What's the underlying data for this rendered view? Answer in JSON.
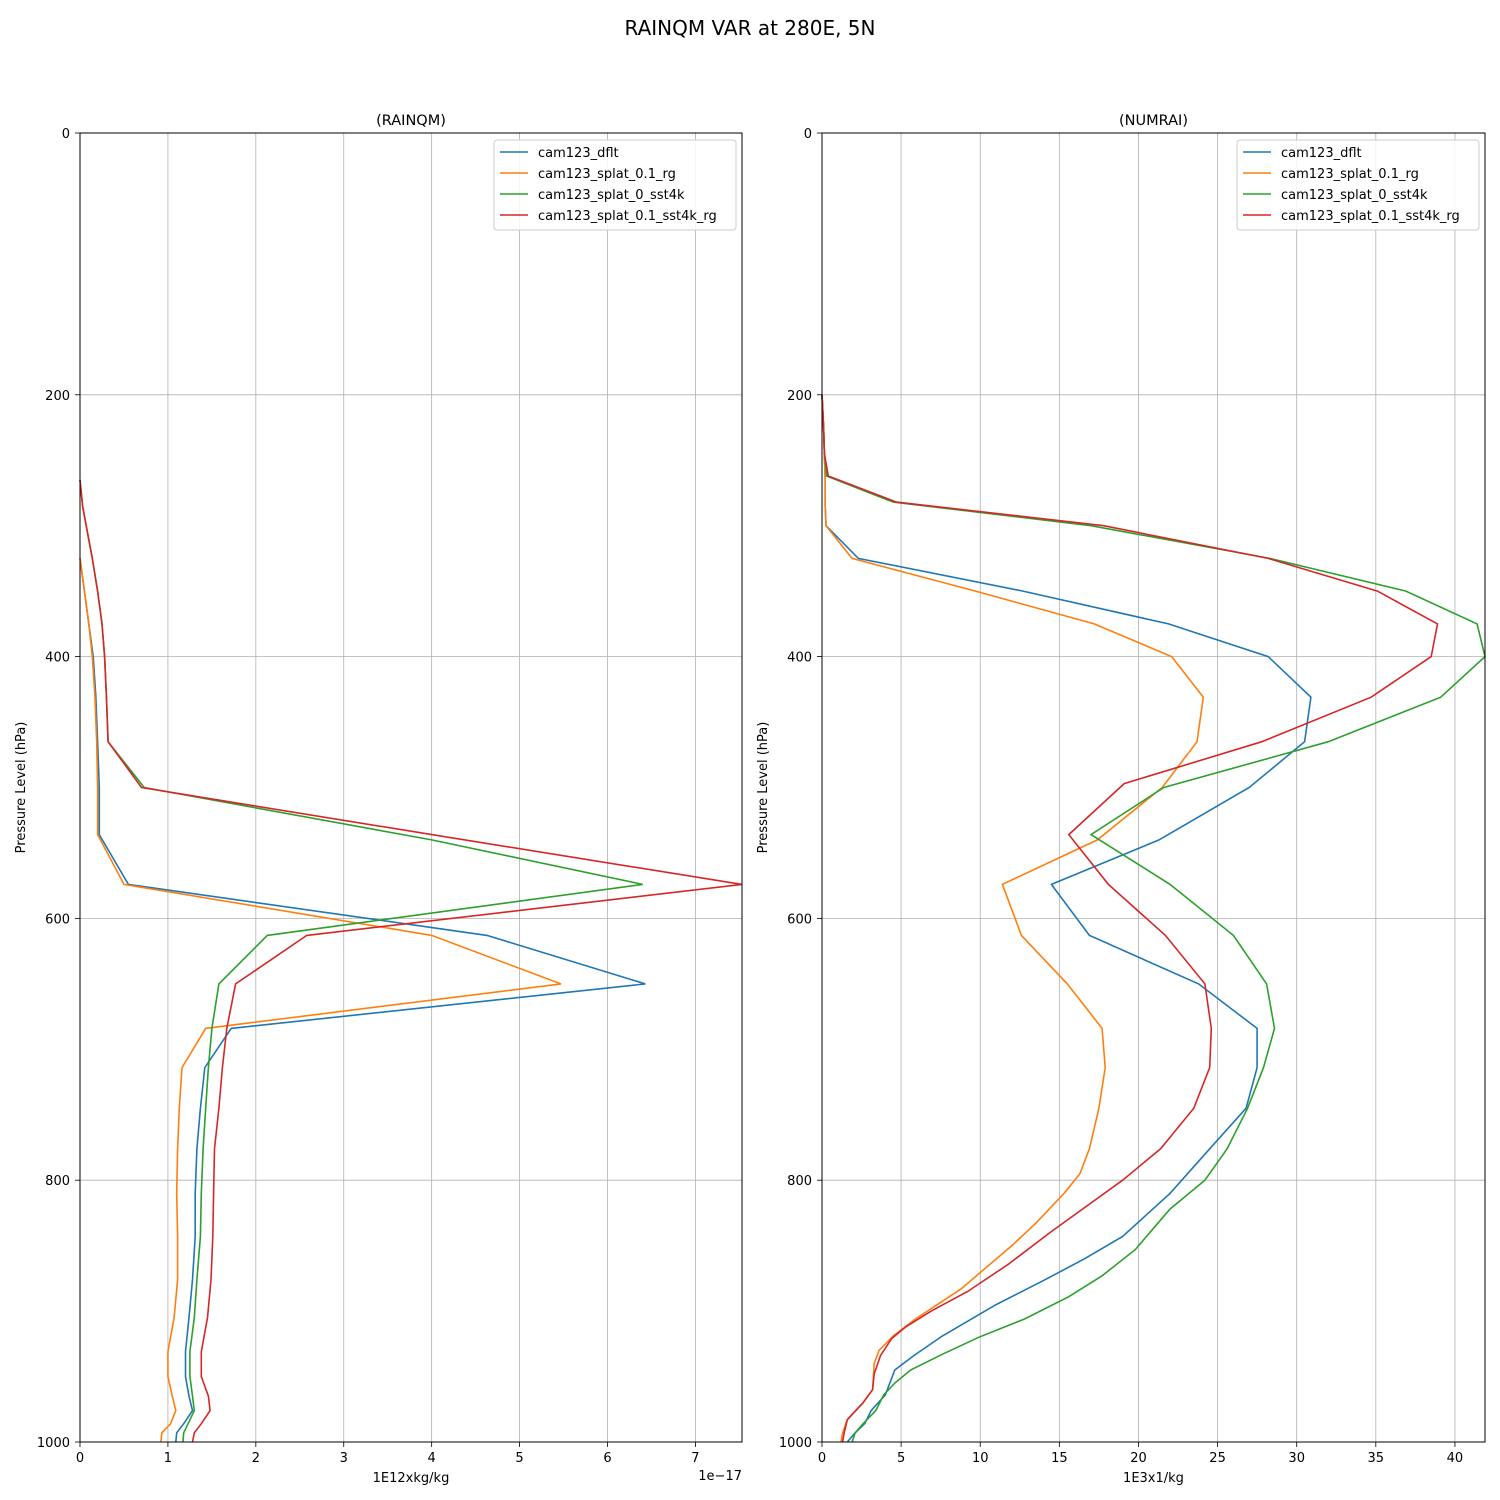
{
  "figure": {
    "title": "RAINQM VAR at 280E, 5N"
  },
  "chart_data": [
    {
      "type": "line",
      "title": "(RAINQM)",
      "xlabel": "1E12xkg/kg",
      "ylabel": "Pressure Level (hPa)",
      "x_offset_label": "1e−17",
      "xlim": [
        0,
        7.53
      ],
      "ylim": [
        1000,
        0
      ],
      "y_inverted": true,
      "grid": true,
      "legend_position": "upper right",
      "xticks": [
        0,
        1,
        2,
        3,
        4,
        5,
        6,
        7
      ],
      "yticks": [
        0,
        200,
        400,
        600,
        800,
        1000
      ],
      "series": [
        {
          "name": "cam123_dflt",
          "color": "#1f77b4",
          "points": [
            [
              0,
              325
            ],
            [
              0.05,
              350
            ],
            [
              0.1,
              375
            ],
            [
              0.15,
              400
            ],
            [
              0.18,
              430
            ],
            [
              0.2,
              465
            ],
            [
              0.22,
              500
            ],
            [
              0.22,
              536
            ],
            [
              0.55,
              574
            ],
            [
              4.63,
              613
            ],
            [
              6.43,
              650
            ],
            [
              1.72,
              684
            ],
            [
              1.42,
              714
            ],
            [
              1.37,
              745
            ],
            [
              1.33,
              776
            ],
            [
              1.31,
              810
            ],
            [
              1.31,
              843
            ],
            [
              1.28,
              876
            ],
            [
              1.24,
              905
            ],
            [
              1.2,
              931
            ],
            [
              1.2,
              950
            ],
            [
              1.24,
              965
            ],
            [
              1.28,
              976
            ],
            [
              1.18,
              986
            ],
            [
              1.1,
              993
            ],
            [
              1.09,
              1000
            ]
          ]
        },
        {
          "name": "cam123_splat_0.1_rg",
          "color": "#ff7f0e",
          "points": [
            [
              0,
              325
            ],
            [
              0.05,
              350
            ],
            [
              0.1,
              375
            ],
            [
              0.14,
              400
            ],
            [
              0.17,
              430
            ],
            [
              0.19,
              465
            ],
            [
              0.2,
              500
            ],
            [
              0.2,
              536
            ],
            [
              0.5,
              574
            ],
            [
              4.0,
              613
            ],
            [
              5.47,
              650
            ],
            [
              1.43,
              684
            ],
            [
              1.16,
              714
            ],
            [
              1.13,
              745
            ],
            [
              1.11,
              776
            ],
            [
              1.1,
              810
            ],
            [
              1.11,
              843
            ],
            [
              1.11,
              876
            ],
            [
              1.07,
              905
            ],
            [
              1.0,
              931
            ],
            [
              1.0,
              950
            ],
            [
              1.05,
              965
            ],
            [
              1.09,
              976
            ],
            [
              1.03,
              986
            ],
            [
              0.93,
              993
            ],
            [
              0.92,
              1000
            ]
          ]
        },
        {
          "name": "cam123_splat_0_sst4k",
          "color": "#2ca02c",
          "points": [
            [
              0,
              265
            ],
            [
              0.03,
              285
            ],
            [
              0.07,
              300
            ],
            [
              0.14,
              325
            ],
            [
              0.2,
              350
            ],
            [
              0.25,
              375
            ],
            [
              0.28,
              400
            ],
            [
              0.3,
              430
            ],
            [
              0.32,
              465
            ],
            [
              0.73,
              500
            ],
            [
              4.0,
              540
            ],
            [
              6.4,
              574
            ],
            [
              2.13,
              613
            ],
            [
              1.58,
              650
            ],
            [
              1.5,
              684
            ],
            [
              1.46,
              714
            ],
            [
              1.43,
              745
            ],
            [
              1.4,
              776
            ],
            [
              1.38,
              810
            ],
            [
              1.37,
              843
            ],
            [
              1.33,
              876
            ],
            [
              1.3,
              905
            ],
            [
              1.25,
              931
            ],
            [
              1.25,
              950
            ],
            [
              1.28,
              965
            ],
            [
              1.3,
              976
            ],
            [
              1.23,
              986
            ],
            [
              1.18,
              993
            ],
            [
              1.17,
              1000
            ]
          ]
        },
        {
          "name": "cam123_splat_0.1_sst4k_rg",
          "color": "#d62728",
          "points": [
            [
              0,
              265
            ],
            [
              0.03,
              285
            ],
            [
              0.07,
              300
            ],
            [
              0.14,
              325
            ],
            [
              0.2,
              350
            ],
            [
              0.25,
              375
            ],
            [
              0.28,
              400
            ],
            [
              0.3,
              430
            ],
            [
              0.32,
              465
            ],
            [
              0.7,
              500
            ],
            [
              4.0,
              536
            ],
            [
              7.53,
              574
            ],
            [
              2.58,
              613
            ],
            [
              1.77,
              650
            ],
            [
              1.67,
              684
            ],
            [
              1.62,
              714
            ],
            [
              1.58,
              745
            ],
            [
              1.53,
              776
            ],
            [
              1.52,
              810
            ],
            [
              1.51,
              843
            ],
            [
              1.49,
              876
            ],
            [
              1.45,
              905
            ],
            [
              1.38,
              931
            ],
            [
              1.38,
              950
            ],
            [
              1.46,
              965
            ],
            [
              1.48,
              976
            ],
            [
              1.38,
              986
            ],
            [
              1.3,
              993
            ],
            [
              1.28,
              1000
            ]
          ]
        }
      ]
    },
    {
      "type": "line",
      "title": "(NUMRAI)",
      "xlabel": "1E3x1/kg",
      "ylabel": "Pressure Level (hPa)",
      "xlim": [
        0,
        41.9
      ],
      "ylim": [
        1000,
        0
      ],
      "y_inverted": true,
      "grid": true,
      "legend_position": "upper right",
      "xticks": [
        0,
        5,
        10,
        15,
        20,
        25,
        30,
        35,
        40
      ],
      "yticks": [
        0,
        200,
        400,
        600,
        800,
        1000
      ],
      "series": [
        {
          "name": "cam123_dflt",
          "color": "#1f77b4",
          "points": [
            [
              0,
              200
            ],
            [
              0.1,
              225
            ],
            [
              0.15,
              245
            ],
            [
              0.2,
              265
            ],
            [
              0.2,
              285
            ],
            [
              0.25,
              300
            ],
            [
              2.3,
              325
            ],
            [
              12.7,
              350
            ],
            [
              21.9,
              375
            ],
            [
              28.2,
              400
            ],
            [
              30.9,
              431
            ],
            [
              30.5,
              465
            ],
            [
              27.0,
              500
            ],
            [
              21.3,
              540
            ],
            [
              14.5,
              574
            ],
            [
              16.9,
              613
            ],
            [
              23.8,
              650
            ],
            [
              27.5,
              684
            ],
            [
              27.5,
              714
            ],
            [
              26.8,
              745
            ],
            [
              24.5,
              776
            ],
            [
              22.0,
              810
            ],
            [
              19.0,
              843
            ],
            [
              16.6,
              860
            ],
            [
              14.1,
              876
            ],
            [
              11.0,
              895
            ],
            [
              7.6,
              919
            ],
            [
              5.8,
              934
            ],
            [
              4.6,
              945
            ],
            [
              4.0,
              964
            ],
            [
              3.1,
              976
            ],
            [
              2.7,
              986
            ],
            [
              2.1,
              993
            ],
            [
              1.6,
              1000
            ]
          ]
        },
        {
          "name": "cam123_splat_0.1_rg",
          "color": "#ff7f0e",
          "points": [
            [
              0,
              200
            ],
            [
              0.1,
              225
            ],
            [
              0.15,
              245
            ],
            [
              0.2,
              265
            ],
            [
              0.2,
              285
            ],
            [
              0.25,
              300
            ],
            [
              1.9,
              325
            ],
            [
              9.7,
              350
            ],
            [
              17.2,
              375
            ],
            [
              22.1,
              400
            ],
            [
              24.1,
              431
            ],
            [
              23.7,
              465
            ],
            [
              21.5,
              500
            ],
            [
              17.4,
              540
            ],
            [
              11.4,
              574
            ],
            [
              12.6,
              613
            ],
            [
              15.5,
              650
            ],
            [
              17.7,
              684
            ],
            [
              17.9,
              714
            ],
            [
              17.5,
              745
            ],
            [
              16.9,
              776
            ],
            [
              16.3,
              795
            ],
            [
              15.3,
              810
            ],
            [
              13.5,
              833
            ],
            [
              12.0,
              850
            ],
            [
              8.8,
              883
            ],
            [
              5.9,
              906
            ],
            [
              4.5,
              919
            ],
            [
              3.6,
              930
            ],
            [
              3.3,
              940
            ],
            [
              3.2,
              960
            ],
            [
              2.6,
              970
            ],
            [
              1.6,
              983
            ],
            [
              1.3,
              993
            ],
            [
              1.2,
              1000
            ]
          ]
        },
        {
          "name": "cam123_splat_0_sst4k",
          "color": "#2ca02c",
          "points": [
            [
              0,
              200
            ],
            [
              0.1,
              225
            ],
            [
              0.15,
              245
            ],
            [
              0.3,
              262
            ],
            [
              4.5,
              282
            ],
            [
              17.0,
              300
            ],
            [
              28.3,
              325
            ],
            [
              36.9,
              350
            ],
            [
              41.4,
              375
            ],
            [
              41.9,
              400
            ],
            [
              39.1,
              431
            ],
            [
              32.0,
              465
            ],
            [
              21.6,
              500
            ],
            [
              17.0,
              536
            ],
            [
              22.0,
              574
            ],
            [
              26.0,
              613
            ],
            [
              28.1,
              650
            ],
            [
              28.6,
              684
            ],
            [
              27.9,
              714
            ],
            [
              26.9,
              745
            ],
            [
              25.6,
              776
            ],
            [
              24.2,
              800
            ],
            [
              22.0,
              822
            ],
            [
              21.0,
              836
            ],
            [
              19.8,
              853
            ],
            [
              17.7,
              873
            ],
            [
              15.6,
              889
            ],
            [
              12.8,
              906
            ],
            [
              9.9,
              920
            ],
            [
              7.6,
              933
            ],
            [
              5.6,
              945
            ],
            [
              4.6,
              955
            ],
            [
              3.9,
              964
            ],
            [
              3.4,
              976
            ],
            [
              2.6,
              986
            ],
            [
              2.1,
              993
            ],
            [
              1.9,
              1000
            ]
          ]
        },
        {
          "name": "cam123_splat_0.1_sst4k_rg",
          "color": "#d62728",
          "points": [
            [
              0,
              200
            ],
            [
              0.1,
              225
            ],
            [
              0.15,
              245
            ],
            [
              0.4,
              262
            ],
            [
              4.7,
              282
            ],
            [
              17.8,
              300
            ],
            [
              28.2,
              325
            ],
            [
              35.1,
              350
            ],
            [
              38.9,
              375
            ],
            [
              38.5,
              400
            ],
            [
              34.7,
              431
            ],
            [
              27.8,
              465
            ],
            [
              19.1,
              497
            ],
            [
              15.6,
              536
            ],
            [
              18.1,
              574
            ],
            [
              21.7,
              613
            ],
            [
              24.2,
              650
            ],
            [
              24.6,
              684
            ],
            [
              24.5,
              714
            ],
            [
              23.5,
              745
            ],
            [
              21.4,
              776
            ],
            [
              19.0,
              800
            ],
            [
              16.7,
              820
            ],
            [
              14.4,
              840
            ],
            [
              11.8,
              864
            ],
            [
              9.2,
              885
            ],
            [
              6.9,
              900
            ],
            [
              5.3,
              912
            ],
            [
              4.4,
              921
            ],
            [
              3.7,
              934
            ],
            [
              3.3,
              948
            ],
            [
              3.2,
              960
            ],
            [
              2.6,
              970
            ],
            [
              1.6,
              983
            ],
            [
              1.4,
              993
            ],
            [
              1.3,
              1000
            ]
          ]
        }
      ]
    }
  ]
}
